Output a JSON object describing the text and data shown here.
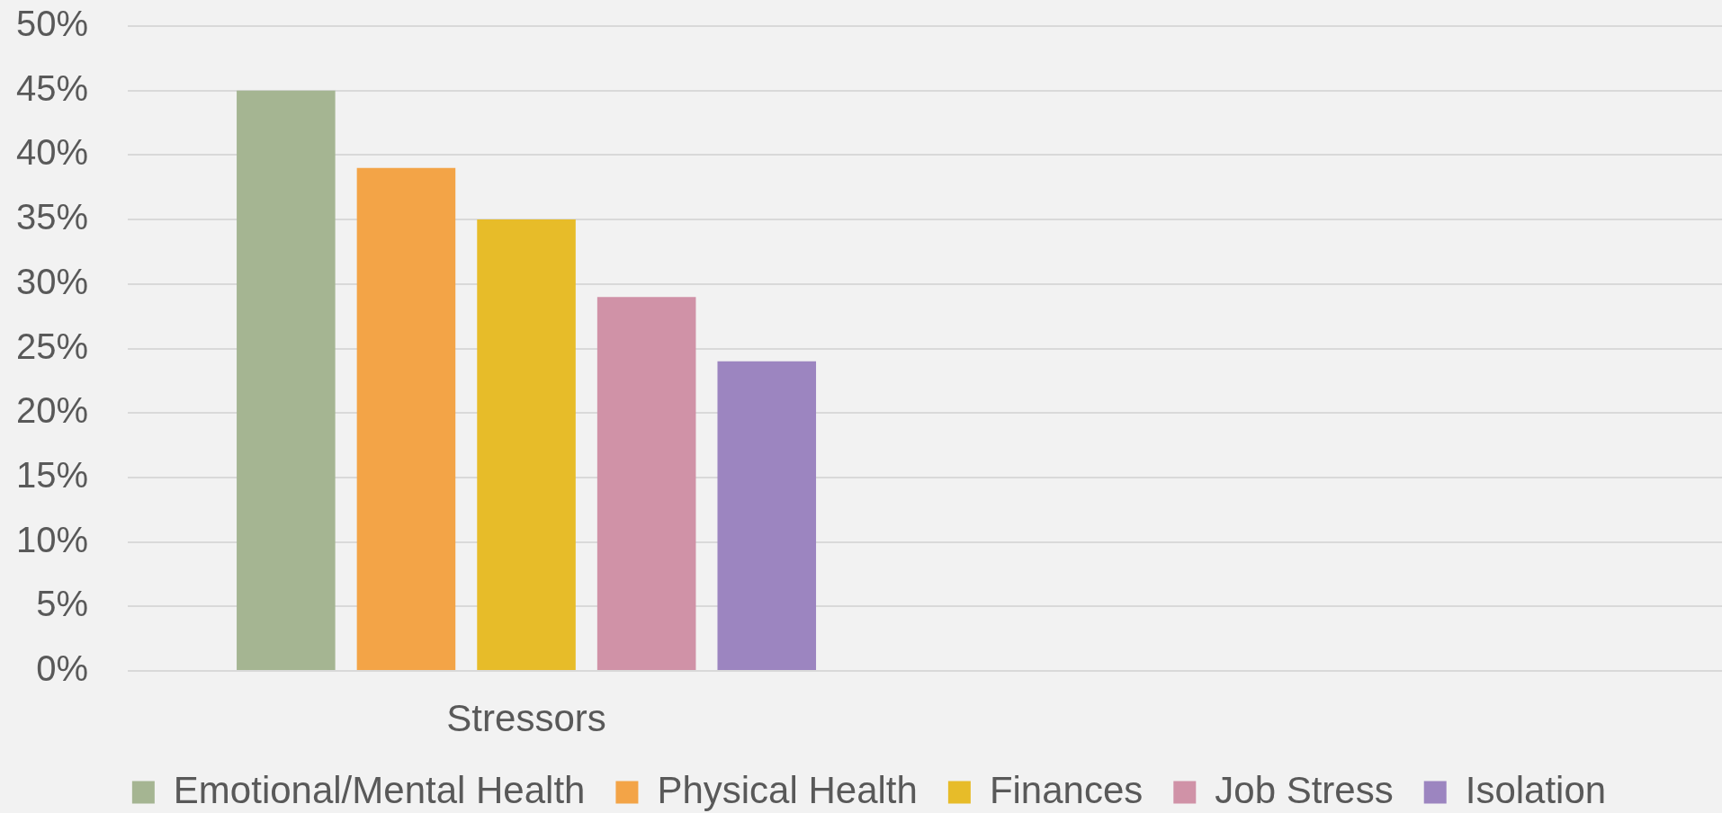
{
  "chart_data": {
    "type": "bar",
    "categories": [
      "Stressors",
      null
    ],
    "series": [
      {
        "name": "Emotional/Mental Health",
        "color": "#a5b592",
        "values": [
          45,
          null
        ]
      },
      {
        "name": "Physical Health",
        "color": "#f3a447",
        "values": [
          39,
          null
        ]
      },
      {
        "name": "Finances",
        "color": "#e7bc29",
        "values": [
          35,
          null
        ]
      },
      {
        "name": "Job Stress",
        "color": "#d092a7",
        "values": [
          29,
          null
        ]
      },
      {
        "name": "Isolation",
        "color": "#9c85c0",
        "values": [
          24,
          null
        ]
      }
    ],
    "ylim": [
      0,
      50
    ],
    "yticks": [
      {
        "value": 0,
        "label": "0%"
      },
      {
        "value": 5,
        "label": "5%"
      },
      {
        "value": 10,
        "label": "10%"
      },
      {
        "value": 15,
        "label": "15%"
      },
      {
        "value": 20,
        "label": "20%"
      },
      {
        "value": 25,
        "label": "25%"
      },
      {
        "value": 30,
        "label": "30%"
      },
      {
        "value": 35,
        "label": "35%"
      },
      {
        "value": 40,
        "label": "40%"
      },
      {
        "value": 45,
        "label": "45%"
      },
      {
        "value": 50,
        "label": "50%"
      }
    ],
    "grid": "y",
    "legend": "bottom"
  }
}
